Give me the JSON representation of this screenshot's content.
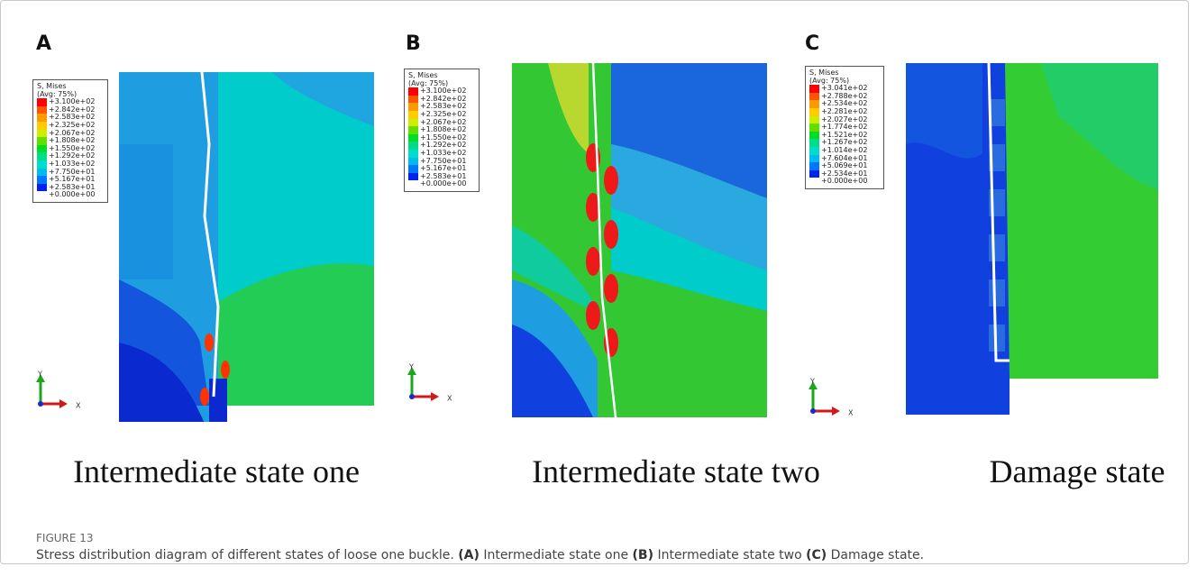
{
  "figure": {
    "label": "FIGURE 13",
    "caption": {
      "text": "Stress distribution diagram of different states of loose one buckle.",
      "parts": [
        {
          "tag": "(A)",
          "text": "Intermediate state one"
        },
        {
          "tag": "(B)",
          "text": "Intermediate state two"
        },
        {
          "tag": "(C)",
          "text": "Damage state."
        }
      ]
    }
  },
  "panels": [
    {
      "letter": "A",
      "legend": {
        "title": "S, Mises",
        "subtitle": "(Avg: 75%)",
        "labels": [
          "+3.100e+02",
          "+2.842e+02",
          "+2.583e+02",
          "+2.325e+02",
          "+2.067e+02",
          "+1.808e+02",
          "+1.550e+02",
          "+1.292e+02",
          "+1.033e+02",
          "+7.750e+01",
          "+5.167e+01",
          "+2.583e+01",
          "+0.000e+00"
        ]
      },
      "axes": {
        "y": "Y",
        "x": "X"
      },
      "caption": "Intermediate state one"
    },
    {
      "letter": "B",
      "legend": {
        "title": "S, Mises",
        "subtitle": "(Avg: 75%)",
        "labels": [
          "+3.100e+02",
          "+2.842e+02",
          "+2.583e+02",
          "+2.325e+02",
          "+2.067e+02",
          "+1.808e+02",
          "+1.550e+02",
          "+1.292e+02",
          "+1.033e+02",
          "+7.750e+01",
          "+5.167e+01",
          "+2.583e+01",
          "+0.000e+00"
        ]
      },
      "axes": {
        "y": "Y",
        "x": "X"
      },
      "caption": "Intermediate state two"
    },
    {
      "letter": "C",
      "legend": {
        "title": "S, Mises",
        "subtitle": "(Avg: 75%)",
        "labels": [
          "+3.041e+02",
          "+2.788e+02",
          "+2.534e+02",
          "+2.281e+02",
          "+2.027e+02",
          "+1.774e+02",
          "+1.521e+02",
          "+1.267e+02",
          "+1.014e+02",
          "+7.604e+01",
          "+5.069e+01",
          "+2.534e+01",
          "+0.000e+00"
        ]
      },
      "axes": {
        "y": "Y",
        "x": "X"
      },
      "caption": "Damage state"
    }
  ]
}
